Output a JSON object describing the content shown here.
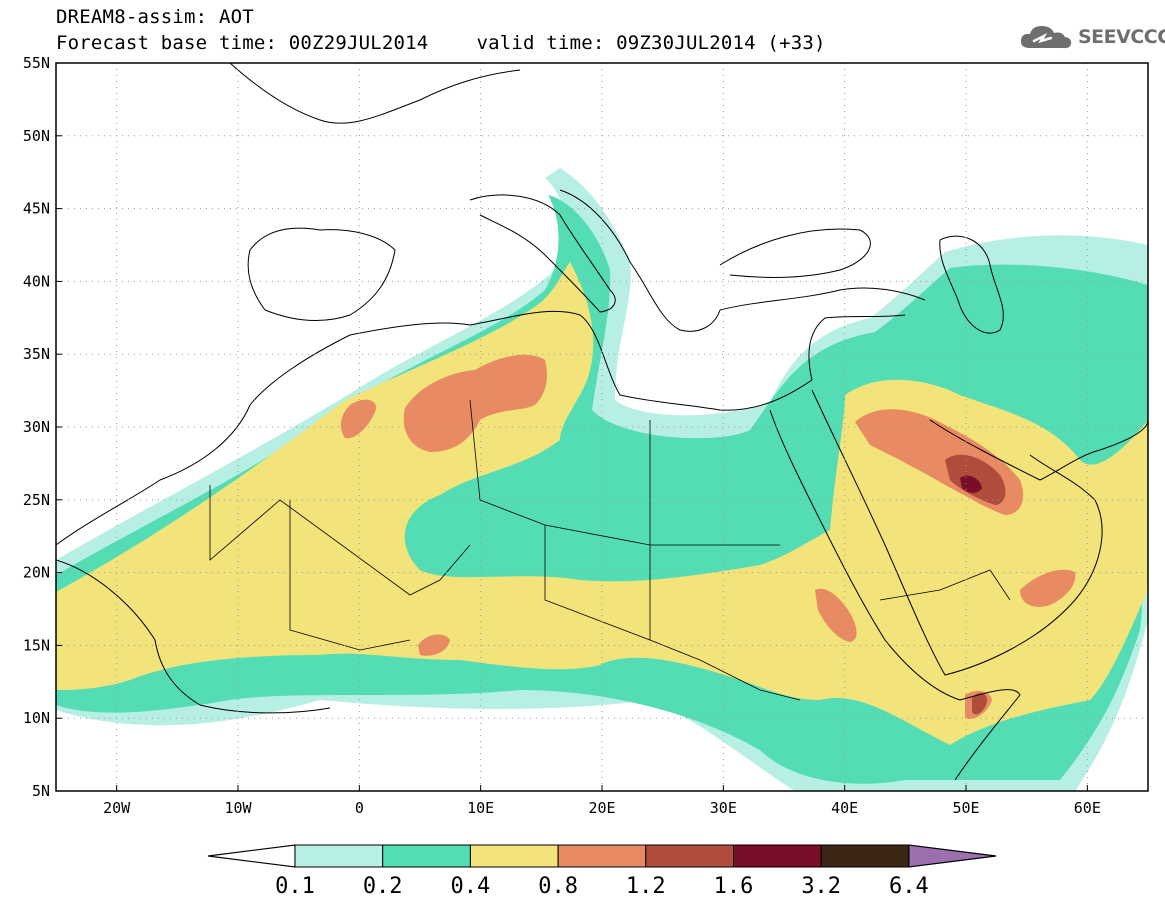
{
  "header": {
    "model_title": "DREAM8-assim: AOT",
    "base_time": "Forecast base time: 00Z29JUL2014",
    "valid_time": "valid time: 09Z30JUL2014 (+33)"
  },
  "logo": {
    "text": "SEEVCCC",
    "icon": "cloud-icon"
  },
  "map": {
    "lon_range": [
      -25,
      65
    ],
    "lat_range": [
      5,
      55
    ],
    "lat_ticks": [
      "5N",
      "10N",
      "15N",
      "20N",
      "25N",
      "30N",
      "35N",
      "40N",
      "45N",
      "50N",
      "55N"
    ],
    "lon_ticks": [
      "20W",
      "10W",
      "0",
      "10E",
      "20E",
      "30E",
      "40E",
      "50E",
      "60E"
    ],
    "grid": "dotted"
  },
  "legend": {
    "levels": [
      "0.1",
      "0.2",
      "0.4",
      "0.8",
      "1.2",
      "1.6",
      "3.2",
      "6.4"
    ],
    "colors": [
      "#b8efe4",
      "#54dcb4",
      "#f2e37a",
      "#e88a62",
      "#b04c3c",
      "#7a0e28",
      "#3c2616",
      "#9a70ae"
    ]
  }
}
